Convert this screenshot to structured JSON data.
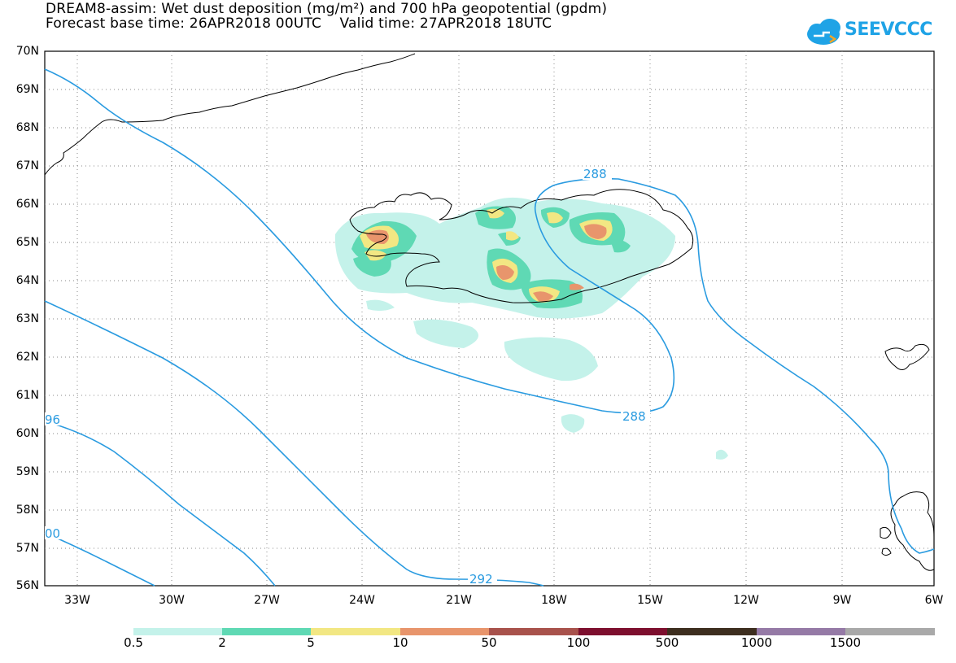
{
  "header": {
    "title_line1": "DREAM8-assim: Wet dust deposition (mg/m²) and 700 hPa geopotential (gpdm)",
    "title_line2": "Forecast base time: 26APR2018 00UTC    Valid time: 27APR2018 18UTC"
  },
  "logo": {
    "text": "SEEVCCC",
    "icon": "cloud-icon",
    "color": "#1fa3e6"
  },
  "map": {
    "lat_labels": [
      "70N",
      "69N",
      "68N",
      "67N",
      "66N",
      "65N",
      "64N",
      "63N",
      "62N",
      "61N",
      "60N",
      "59N",
      "58N",
      "57N",
      "56N"
    ],
    "lon_labels": [
      "33W",
      "30W",
      "27W",
      "24W",
      "21W",
      "18W",
      "15W",
      "12W",
      "9W",
      "6W"
    ],
    "contour_color": "#2a9be0",
    "contour_labels": [
      "288",
      "288",
      "292",
      "96",
      "00"
    ]
  },
  "colorbar": {
    "labels": [
      "0.5",
      "2",
      "5",
      "10",
      "50",
      "100",
      "500",
      "1000",
      "1500"
    ],
    "colors": [
      "#c4f2ea",
      "#5fd9b4",
      "#f2e783",
      "#e8956c",
      "#a8524c",
      "#7d0f2e",
      "#3d2e1f",
      "#957aa6",
      "#a9a9a9"
    ]
  }
}
